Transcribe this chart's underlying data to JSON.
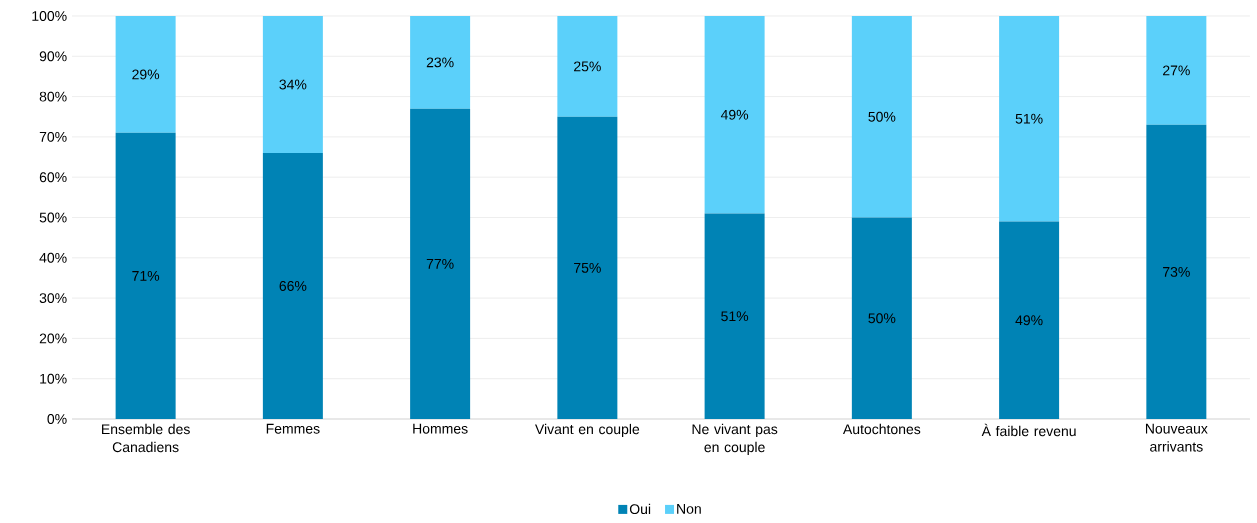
{
  "chart_data": {
    "type": "bar",
    "stacked": true,
    "categories": [
      "Ensemble des Canadiens",
      "Femmes",
      "Hommes",
      "Vivant en couple",
      "Ne vivant pas en couple",
      "Autochtones",
      "À faible revenu",
      "Nouveaux arrivants"
    ],
    "series": [
      {
        "name": "Oui",
        "color": "#0083b5",
        "values": [
          71,
          66,
          77,
          75,
          51,
          50,
          49,
          73
        ],
        "value_labels": [
          "71%",
          "66%",
          "77%",
          "75%",
          "51%",
          "50%",
          "49%",
          "73%"
        ]
      },
      {
        "name": "Non",
        "color": "#5bd0fa",
        "values": [
          29,
          34,
          23,
          25,
          49,
          50,
          51,
          27
        ],
        "value_labels": [
          "29%",
          "34%",
          "23%",
          "25%",
          "49%",
          "50%",
          "51%",
          "27%"
        ]
      }
    ],
    "ylim": [
      0,
      100
    ],
    "yticks": [
      {
        "value": 0,
        "label": "0%"
      },
      {
        "value": 10,
        "label": "10%"
      },
      {
        "value": 20,
        "label": "20%"
      },
      {
        "value": 30,
        "label": "30%"
      },
      {
        "value": 40,
        "label": "40%"
      },
      {
        "value": 50,
        "label": "50%"
      },
      {
        "value": 60,
        "label": "60%"
      },
      {
        "value": 70,
        "label": "70%"
      },
      {
        "value": 80,
        "label": "80%"
      },
      {
        "value": 90,
        "label": "90%"
      },
      {
        "value": 100,
        "label": "100%"
      }
    ],
    "grid": "y",
    "legend": "bottom"
  }
}
